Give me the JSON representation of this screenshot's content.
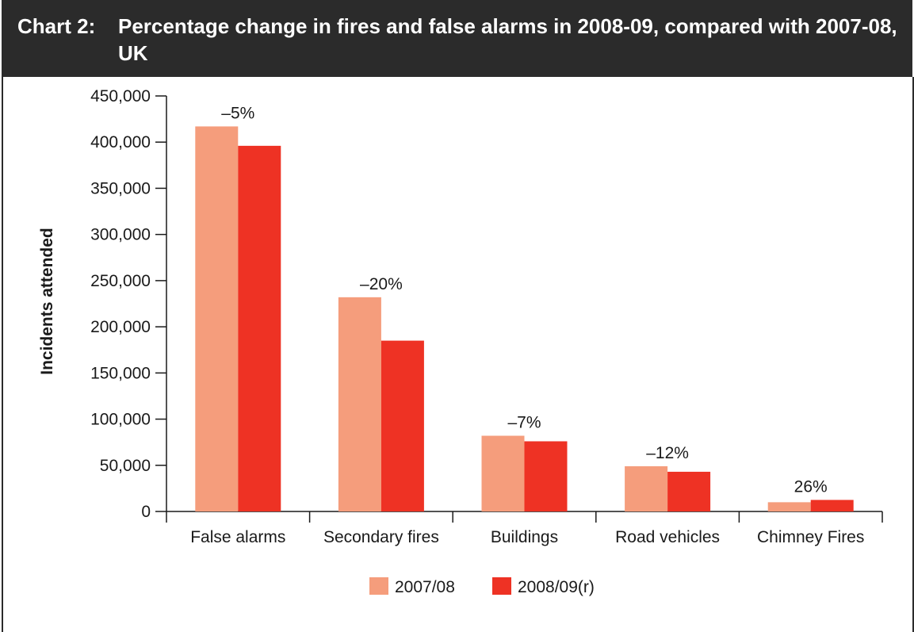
{
  "header": {
    "label": "Chart 2:",
    "title": "Percentage change in fires and false alarms in 2008-09, compared with 2007-08, UK"
  },
  "chart_data": {
    "type": "bar",
    "title": "Percentage change in fires and false alarms in 2008-09, compared with 2007-08, UK",
    "ylabel": "Incidents attended",
    "xlabel": "",
    "ylim": [
      0,
      450000
    ],
    "yticks": [
      0,
      50000,
      100000,
      150000,
      200000,
      250000,
      300000,
      350000,
      400000,
      450000
    ],
    "ytick_labels": [
      "0",
      "50,000",
      "100,000",
      "150,000",
      "200,000",
      "250,000",
      "300,000",
      "350,000",
      "400,000",
      "450,000"
    ],
    "categories": [
      "False alarms",
      "Secondary fires",
      "Buildings",
      "Road vehicles",
      "Chimney Fires"
    ],
    "series": [
      {
        "name": "2007/08",
        "color": "#f59d7c",
        "values": [
          417000,
          232000,
          82000,
          49000,
          10000
        ]
      },
      {
        "name": "2008/09(r)",
        "color": "#ee3224",
        "values": [
          396000,
          185000,
          76000,
          43000,
          12500
        ]
      }
    ],
    "annotations": [
      "–5%",
      "–20%",
      "–7%",
      "–12%",
      "26%"
    ],
    "legend_position": "bottom-center",
    "grid": false
  }
}
